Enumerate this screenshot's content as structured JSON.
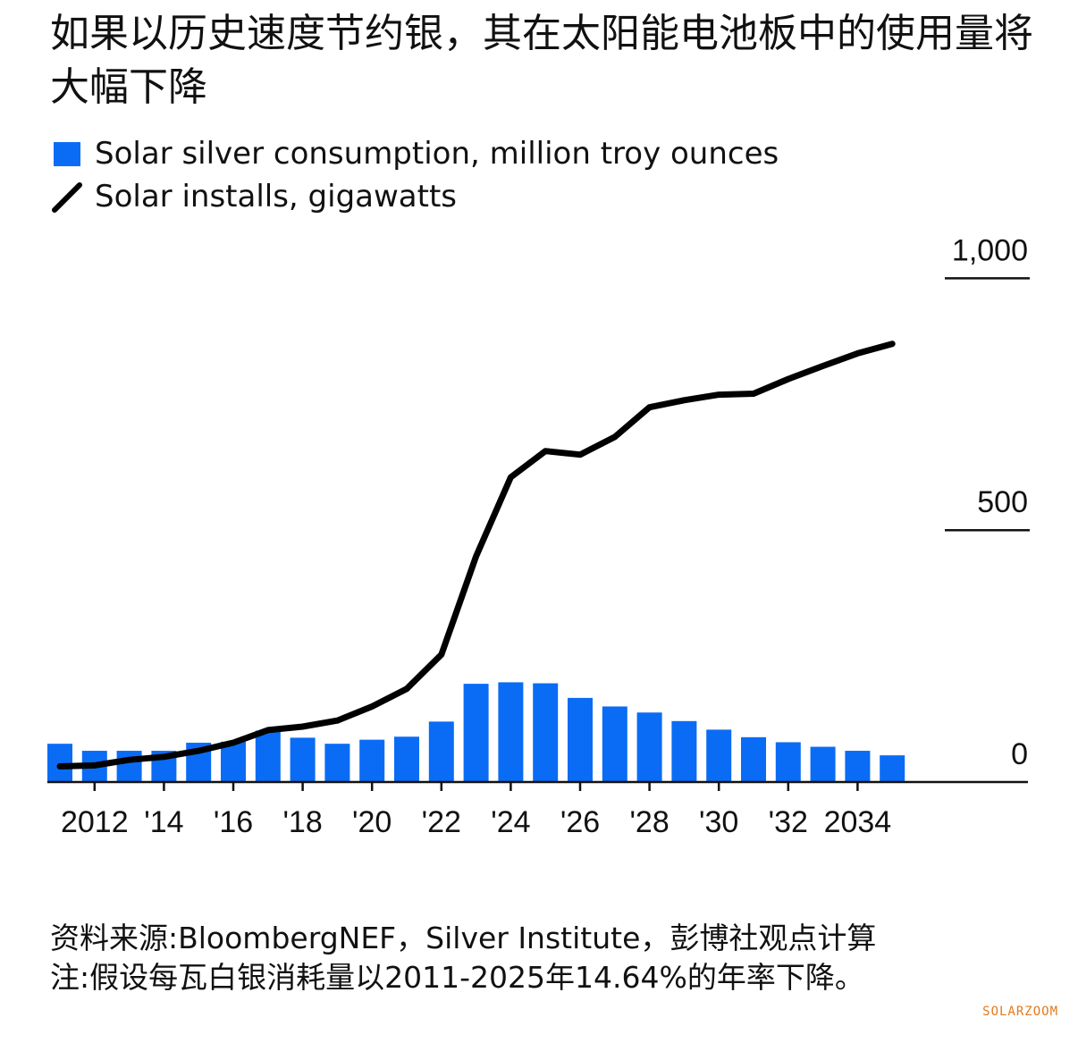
{
  "title": "如果以历史速度节约银，其在太阳能电池板中的使用量将大幅下降",
  "legend": {
    "bar_label": "Solar silver consumption, million troy ounces",
    "line_label": "Solar installs, gigawatts"
  },
  "footer": {
    "source": "资料来源:BloombergNEF，Silver Institute，彭博社观点计算",
    "note": "注:假设每瓦白银消耗量以2011-2025年14.64%的年率下降。"
  },
  "watermark": "SOLARZOOM",
  "colors": {
    "bar": "#0a6cf5",
    "line": "#000000",
    "axis": "#111111"
  },
  "chart_data": {
    "type": "bar+line",
    "x": [
      2011,
      2012,
      2013,
      2014,
      2015,
      2016,
      2017,
      2018,
      2019,
      2020,
      2021,
      2022,
      2023,
      2024,
      2025,
      2026,
      2027,
      2028,
      2029,
      2030,
      2031,
      2032,
      2033,
      2034,
      2035
    ],
    "x_tick_labels": [
      {
        "x": 2012,
        "label": "2012"
      },
      {
        "x": 2014,
        "label": "'14"
      },
      {
        "x": 2016,
        "label": "'16"
      },
      {
        "x": 2018,
        "label": "'18"
      },
      {
        "x": 2020,
        "label": "'20"
      },
      {
        "x": 2022,
        "label": "'22"
      },
      {
        "x": 2024,
        "label": "'24"
      },
      {
        "x": 2026,
        "label": "'26"
      },
      {
        "x": 2028,
        "label": "'28"
      },
      {
        "x": 2030,
        "label": "'30"
      },
      {
        "x": 2032,
        "label": "'32"
      },
      {
        "x": 2034,
        "label": "2034"
      }
    ],
    "y_ticks": [
      {
        "value": 0,
        "label": "0"
      },
      {
        "value": 500,
        "label": "500"
      },
      {
        "value": 1000,
        "label": "1,000"
      }
    ],
    "ylim": [
      0,
      1000
    ],
    "grid": false,
    "series": [
      {
        "name": "Solar silver consumption, million troy ounces",
        "type": "bar",
        "values": [
          76,
          62,
          62,
          62,
          78,
          80,
          102,
          88,
          76,
          84,
          90,
          120,
          195,
          198,
          196,
          167,
          150,
          138,
          121,
          104,
          89,
          79,
          70,
          62,
          53
        ]
      },
      {
        "name": "Solar installs, gigawatts",
        "type": "line",
        "values": [
          31,
          33,
          44,
          50,
          62,
          78,
          103,
          110,
          122,
          150,
          185,
          253,
          448,
          605,
          657,
          650,
          685,
          744,
          758,
          769,
          771,
          800,
          826,
          851,
          870
        ]
      }
    ]
  }
}
